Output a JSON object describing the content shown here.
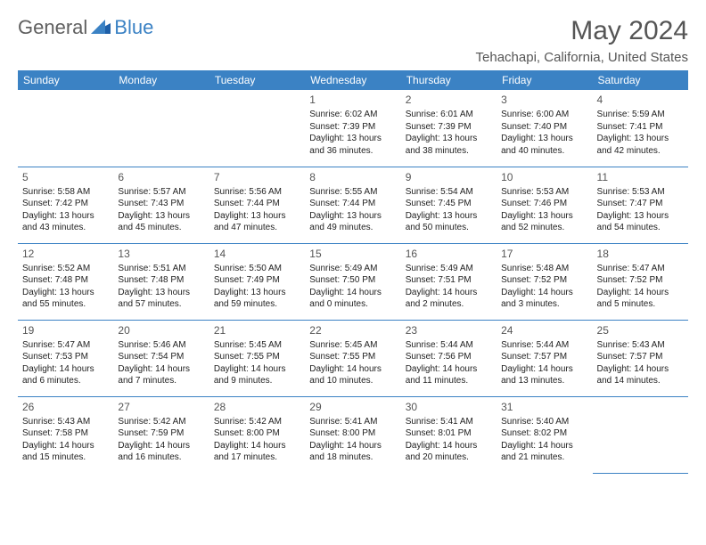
{
  "logo": {
    "text1": "General",
    "text2": "Blue"
  },
  "title": "May 2024",
  "location": "Tehachapi, California, United States",
  "colors": {
    "header_bg": "#3b82c4",
    "header_text": "#ffffff",
    "text": "#333333",
    "border": "#3b82c4",
    "title_color": "#555555"
  },
  "daynames": [
    "Sunday",
    "Monday",
    "Tuesday",
    "Wednesday",
    "Thursday",
    "Friday",
    "Saturday"
  ],
  "weeks": [
    [
      null,
      null,
      null,
      {
        "n": "1",
        "sr": "Sunrise: 6:02 AM",
        "ss": "Sunset: 7:39 PM",
        "dl": "Daylight: 13 hours and 36 minutes."
      },
      {
        "n": "2",
        "sr": "Sunrise: 6:01 AM",
        "ss": "Sunset: 7:39 PM",
        "dl": "Daylight: 13 hours and 38 minutes."
      },
      {
        "n": "3",
        "sr": "Sunrise: 6:00 AM",
        "ss": "Sunset: 7:40 PM",
        "dl": "Daylight: 13 hours and 40 minutes."
      },
      {
        "n": "4",
        "sr": "Sunrise: 5:59 AM",
        "ss": "Sunset: 7:41 PM",
        "dl": "Daylight: 13 hours and 42 minutes."
      }
    ],
    [
      {
        "n": "5",
        "sr": "Sunrise: 5:58 AM",
        "ss": "Sunset: 7:42 PM",
        "dl": "Daylight: 13 hours and 43 minutes."
      },
      {
        "n": "6",
        "sr": "Sunrise: 5:57 AM",
        "ss": "Sunset: 7:43 PM",
        "dl": "Daylight: 13 hours and 45 minutes."
      },
      {
        "n": "7",
        "sr": "Sunrise: 5:56 AM",
        "ss": "Sunset: 7:44 PM",
        "dl": "Daylight: 13 hours and 47 minutes."
      },
      {
        "n": "8",
        "sr": "Sunrise: 5:55 AM",
        "ss": "Sunset: 7:44 PM",
        "dl": "Daylight: 13 hours and 49 minutes."
      },
      {
        "n": "9",
        "sr": "Sunrise: 5:54 AM",
        "ss": "Sunset: 7:45 PM",
        "dl": "Daylight: 13 hours and 50 minutes."
      },
      {
        "n": "10",
        "sr": "Sunrise: 5:53 AM",
        "ss": "Sunset: 7:46 PM",
        "dl": "Daylight: 13 hours and 52 minutes."
      },
      {
        "n": "11",
        "sr": "Sunrise: 5:53 AM",
        "ss": "Sunset: 7:47 PM",
        "dl": "Daylight: 13 hours and 54 minutes."
      }
    ],
    [
      {
        "n": "12",
        "sr": "Sunrise: 5:52 AM",
        "ss": "Sunset: 7:48 PM",
        "dl": "Daylight: 13 hours and 55 minutes."
      },
      {
        "n": "13",
        "sr": "Sunrise: 5:51 AM",
        "ss": "Sunset: 7:48 PM",
        "dl": "Daylight: 13 hours and 57 minutes."
      },
      {
        "n": "14",
        "sr": "Sunrise: 5:50 AM",
        "ss": "Sunset: 7:49 PM",
        "dl": "Daylight: 13 hours and 59 minutes."
      },
      {
        "n": "15",
        "sr": "Sunrise: 5:49 AM",
        "ss": "Sunset: 7:50 PM",
        "dl": "Daylight: 14 hours and 0 minutes."
      },
      {
        "n": "16",
        "sr": "Sunrise: 5:49 AM",
        "ss": "Sunset: 7:51 PM",
        "dl": "Daylight: 14 hours and 2 minutes."
      },
      {
        "n": "17",
        "sr": "Sunrise: 5:48 AM",
        "ss": "Sunset: 7:52 PM",
        "dl": "Daylight: 14 hours and 3 minutes."
      },
      {
        "n": "18",
        "sr": "Sunrise: 5:47 AM",
        "ss": "Sunset: 7:52 PM",
        "dl": "Daylight: 14 hours and 5 minutes."
      }
    ],
    [
      {
        "n": "19",
        "sr": "Sunrise: 5:47 AM",
        "ss": "Sunset: 7:53 PM",
        "dl": "Daylight: 14 hours and 6 minutes."
      },
      {
        "n": "20",
        "sr": "Sunrise: 5:46 AM",
        "ss": "Sunset: 7:54 PM",
        "dl": "Daylight: 14 hours and 7 minutes."
      },
      {
        "n": "21",
        "sr": "Sunrise: 5:45 AM",
        "ss": "Sunset: 7:55 PM",
        "dl": "Daylight: 14 hours and 9 minutes."
      },
      {
        "n": "22",
        "sr": "Sunrise: 5:45 AM",
        "ss": "Sunset: 7:55 PM",
        "dl": "Daylight: 14 hours and 10 minutes."
      },
      {
        "n": "23",
        "sr": "Sunrise: 5:44 AM",
        "ss": "Sunset: 7:56 PM",
        "dl": "Daylight: 14 hours and 11 minutes."
      },
      {
        "n": "24",
        "sr": "Sunrise: 5:44 AM",
        "ss": "Sunset: 7:57 PM",
        "dl": "Daylight: 14 hours and 13 minutes."
      },
      {
        "n": "25",
        "sr": "Sunrise: 5:43 AM",
        "ss": "Sunset: 7:57 PM",
        "dl": "Daylight: 14 hours and 14 minutes."
      }
    ],
    [
      {
        "n": "26",
        "sr": "Sunrise: 5:43 AM",
        "ss": "Sunset: 7:58 PM",
        "dl": "Daylight: 14 hours and 15 minutes."
      },
      {
        "n": "27",
        "sr": "Sunrise: 5:42 AM",
        "ss": "Sunset: 7:59 PM",
        "dl": "Daylight: 14 hours and 16 minutes."
      },
      {
        "n": "28",
        "sr": "Sunrise: 5:42 AM",
        "ss": "Sunset: 8:00 PM",
        "dl": "Daylight: 14 hours and 17 minutes."
      },
      {
        "n": "29",
        "sr": "Sunrise: 5:41 AM",
        "ss": "Sunset: 8:00 PM",
        "dl": "Daylight: 14 hours and 18 minutes."
      },
      {
        "n": "30",
        "sr": "Sunrise: 5:41 AM",
        "ss": "Sunset: 8:01 PM",
        "dl": "Daylight: 14 hours and 20 minutes."
      },
      {
        "n": "31",
        "sr": "Sunrise: 5:40 AM",
        "ss": "Sunset: 8:02 PM",
        "dl": "Daylight: 14 hours and 21 minutes."
      },
      null
    ]
  ]
}
